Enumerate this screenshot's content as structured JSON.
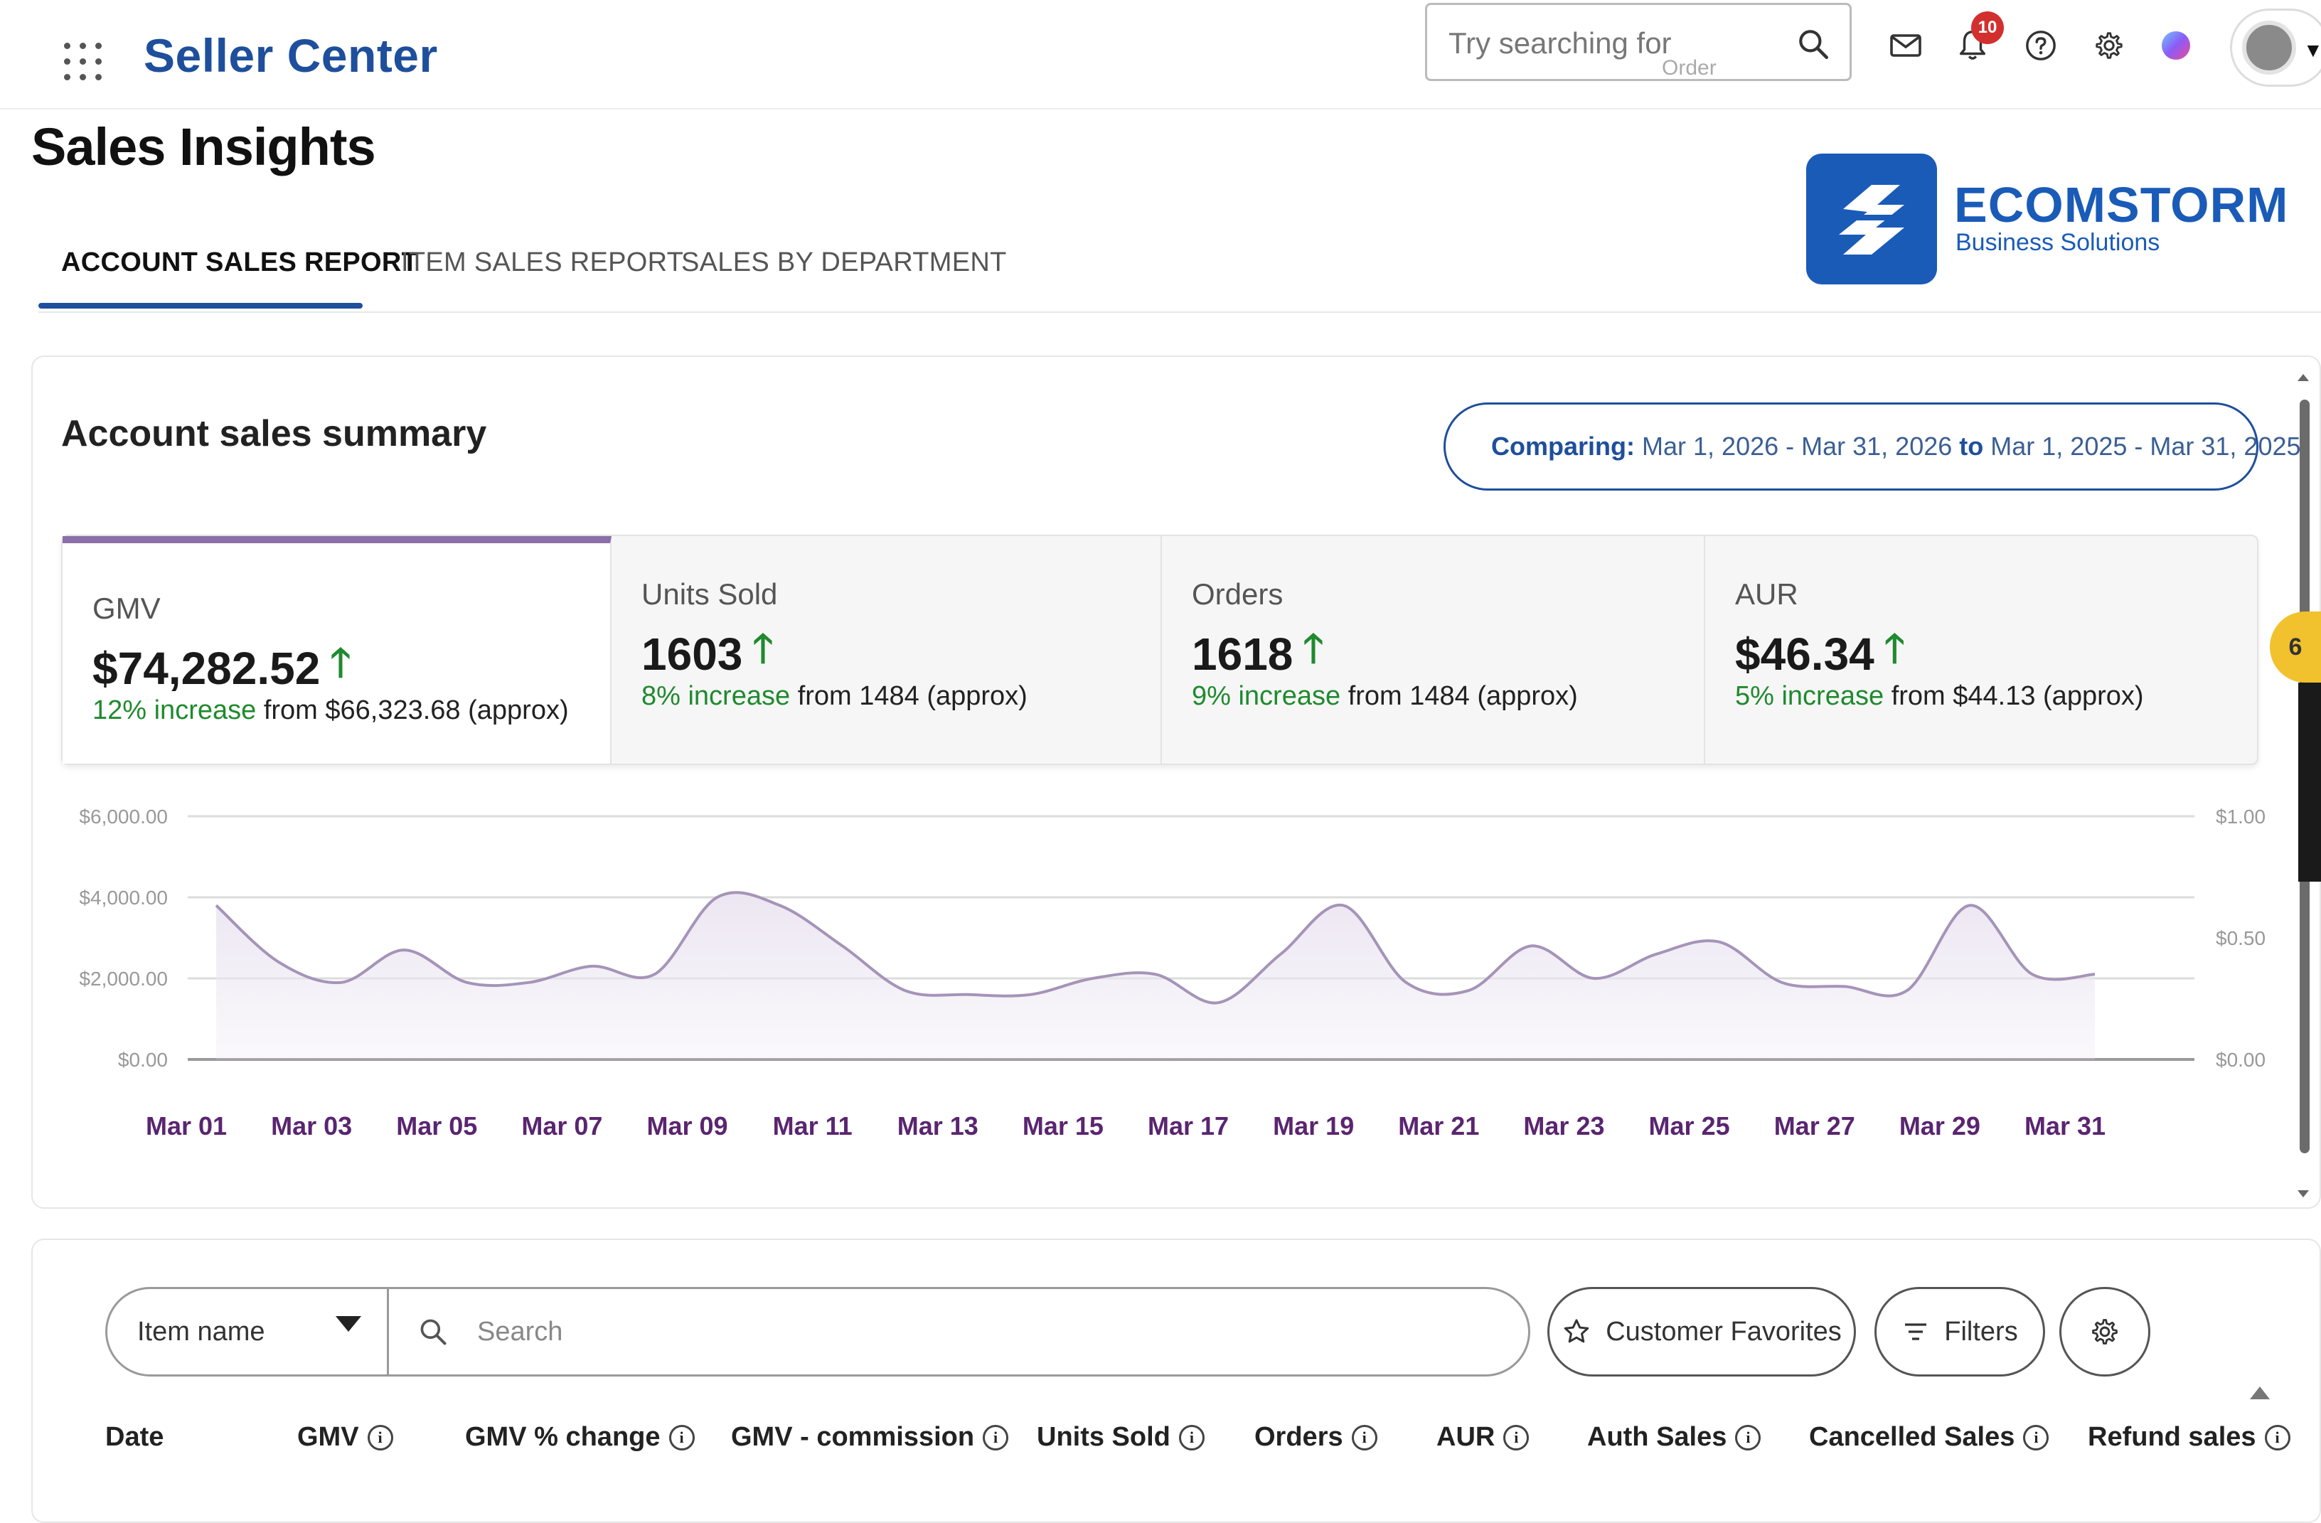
{
  "header": {
    "brand": "Seller Center",
    "search_placeholder": "Try searching for",
    "search_hint": "Order",
    "notification_count": "10",
    "icons": [
      "apps-grid-icon",
      "mail-icon",
      "bell-icon",
      "help-icon",
      "gear-icon",
      "assistant-orb-icon",
      "avatar-icon",
      "chevron-down-icon"
    ]
  },
  "page": {
    "title": "Sales Insights",
    "tabs": [
      "ACCOUNT SALES REPORT",
      "ITEM SALES REPORT",
      "SALES BY DEPARTMENT"
    ],
    "active_tab": 0
  },
  "logo": {
    "name": "ECOMSTORM",
    "sub": "Business Solutions"
  },
  "summary": {
    "title": "Account sales summary",
    "compare_label": "Comparing:",
    "range_current": "Mar 1, 2026 - Mar 31, 2026",
    "to": "to",
    "range_previous": "Mar 1, 2025 - Mar 31, 2025"
  },
  "metrics": [
    {
      "label": "GMV",
      "value": "$74,282.52",
      "pct": "12% increase",
      "rest": "from $66,323.68 (approx)"
    },
    {
      "label": "Units Sold",
      "value": "1603",
      "pct": "8% increase",
      "rest": "from 1484 (approx)"
    },
    {
      "label": "Orders",
      "value": "1618",
      "pct": "9% increase",
      "rest": "from 1484 (approx)"
    },
    {
      "label": "AUR",
      "value": "$46.34",
      "pct": "5% increase",
      "rest": "from $44.13 (approx)"
    }
  ],
  "side_badge": "6",
  "chart_data": {
    "type": "area",
    "x": [
      "Mar 01",
      "Mar 02",
      "Mar 03",
      "Mar 04",
      "Mar 05",
      "Mar 06",
      "Mar 07",
      "Mar 08",
      "Mar 09",
      "Mar 10",
      "Mar 11",
      "Mar 12",
      "Mar 13",
      "Mar 14",
      "Mar 15",
      "Mar 16",
      "Mar 17",
      "Mar 18",
      "Mar 19",
      "Mar 20",
      "Mar 21",
      "Mar 22",
      "Mar 23",
      "Mar 24",
      "Mar 25",
      "Mar 26",
      "Mar 27",
      "Mar 28",
      "Mar 29",
      "Mar 30",
      "Mar 31"
    ],
    "x_tick_labels": [
      "Mar 01",
      "Mar 03",
      "Mar 05",
      "Mar 07",
      "Mar 09",
      "Mar 11",
      "Mar 13",
      "Mar 15",
      "Mar 17",
      "Mar 19",
      "Mar 21",
      "Mar 23",
      "Mar 25",
      "Mar 27",
      "Mar 29",
      "Mar 31"
    ],
    "series": [
      {
        "values": [
          3800,
          2400,
          1900,
          2700,
          1900,
          1900,
          2300,
          2100,
          4000,
          3800,
          2800,
          1700,
          1600,
          1600,
          2000,
          2100,
          1400,
          2600,
          3800,
          1900,
          1700,
          2800,
          2000,
          2600,
          2900,
          1900,
          1800,
          1700,
          3800,
          2100,
          2100
        ]
      }
    ],
    "y_left_ticks": [
      "$6,000.00",
      "$4,000.00",
      "$2,000.00",
      "$0.00"
    ],
    "y_right_ticks": [
      "$1.00",
      "$0.50",
      "$0.00"
    ],
    "ylim": [
      0,
      6000
    ],
    "grid": true,
    "colors": {
      "line": "#a594b8",
      "fill": "#ece6f2",
      "tick": "#5a2570",
      "grid": "#dcdcdc",
      "axis": "#999999"
    }
  },
  "table": {
    "filter_select": "Item name",
    "search_placeholder": "Search",
    "favorites_label": "Customer Favorites",
    "filters_label": "Filters",
    "columns": [
      "Date",
      "GMV",
      "GMV % change",
      "GMV - commission",
      "Units Sold",
      "Orders",
      "AUR",
      "Auth Sales",
      "Cancelled Sales",
      "Refund sales"
    ],
    "info_glyph": "i"
  }
}
